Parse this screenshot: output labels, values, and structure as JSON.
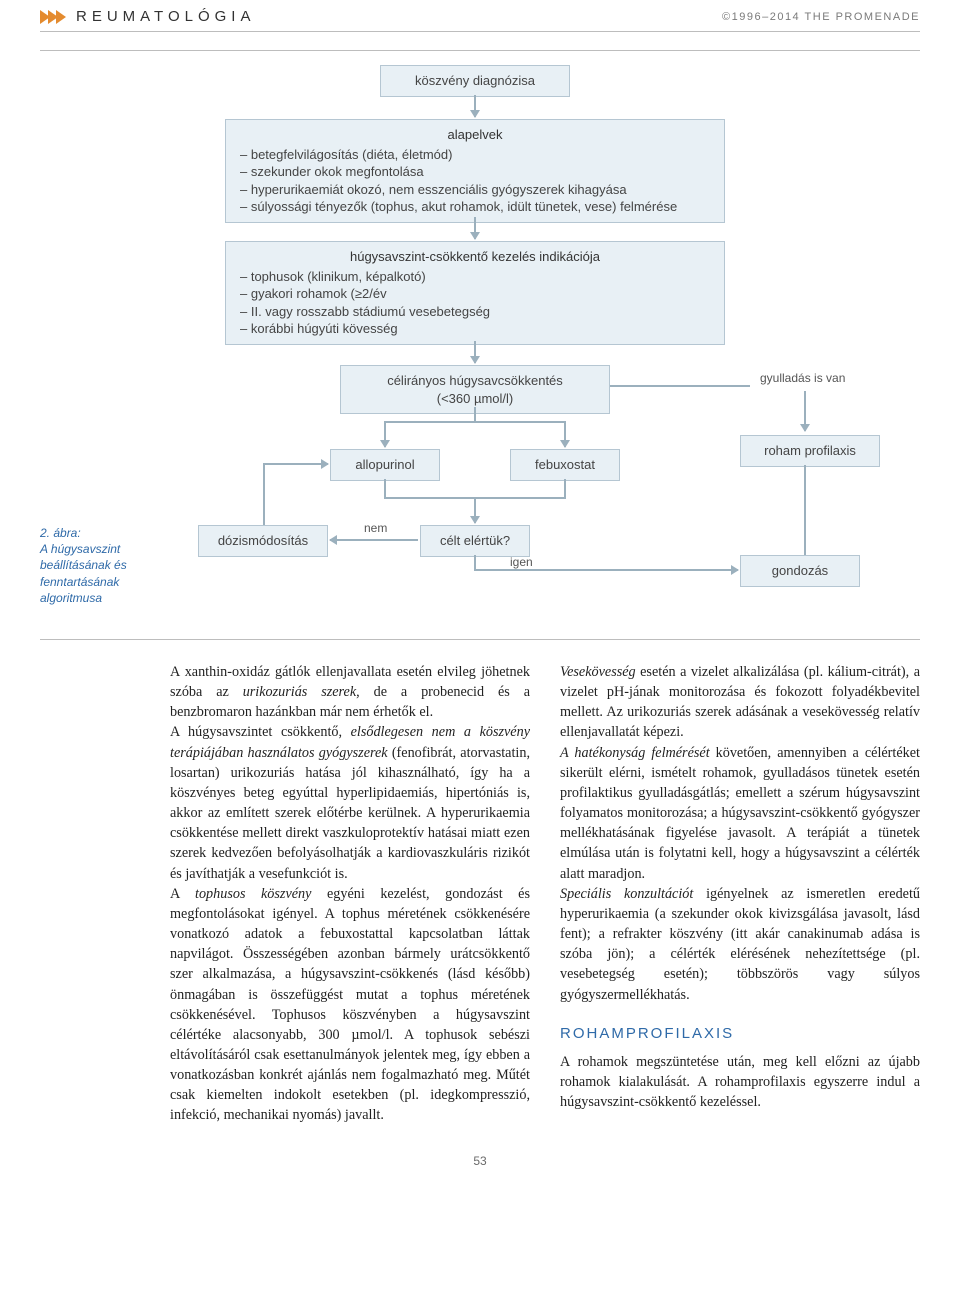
{
  "header": {
    "section": "REUMATOLÓGIA",
    "copyright": "©1996–2014 THE PROMENADE"
  },
  "flowchart": {
    "nodes": {
      "diagnosis": {
        "title": "köszvény diagnózisa"
      },
      "principles": {
        "title": "alapelvek",
        "items": [
          "betegfelvilágosítás (diéta, életmód)",
          "szekunder okok megfontolása",
          "hyperurikaemiát okozó, nem esszenciális gyógyszerek kihagyása",
          "súlyossági tényezők (tophus, akut rohamok, idült tünetek, vese) felmérése"
        ]
      },
      "indication": {
        "title": "húgysavszint-csökkentő kezelés indikációja",
        "items": [
          "tophusok (klinikum, képalkotó)",
          "gyakori rohamok (≥2/év",
          "II. vagy rosszabb stádiumú vesebetegség",
          "korábbi húgyúti kövesség"
        ]
      },
      "target": {
        "line1": "célirányos húgysavcsökkentés",
        "line2": "(<360 µmol/l)"
      },
      "allopurinol": "allopurinol",
      "febuxostat": "febuxostat",
      "dose": "dózismódosítás",
      "reached": "célt elértük?",
      "inflammation": "gyulladás is van",
      "prophylaxis": "roham profilaxis",
      "care": "gondozás"
    },
    "labels": {
      "no": "nem",
      "yes": "igen"
    }
  },
  "figure_caption": {
    "num": "2. ábra:",
    "text": "A húgysavszint beállításának és fenntartásának algoritmusa"
  },
  "body": {
    "left": "A xanthin-oxidáz gátlók ellenjavallata esetén elvileg jöhetnek szóba az <em class=\"ital\">urikozuriás szerek</em>, de a probenecid és a benzbromaron hazánkban már nem érhetők el.<br>A húgysavszintet csökkentő, <em class=\"ital\">elsődlegesen nem a köszvény terápiájában használatos gyógyszerek</em> (fenofibrát, atorvastatin, losartan) urikozuriás hatása jól kihasználható, így ha a köszvényes beteg egyúttal hyperlipidaemiás, hipertóniás is, akkor az említett szerek előtérbe kerülnek. A hyperurikaemia csökkentése mellett direkt vaszkuloprotektív hatásai miatt ezen szerek kedvezően befolyásolhatják a kardiovaszkuláris rizikót és javíthatják a vesefunkciót is.<br>A <em class=\"ital\">tophusos köszvény</em> egyéni kezelést, gondozást és megfontolásokat igényel. A tophus méretének csökkenésére vonatkozó adatok a febuxostattal kapcsolatban láttak napvilágot. Összességében azonban bármely urátcsökkentő szer alkalmazása, a húgysavszint-csökkenés (lásd később) önmagában is összefüggést mutat a tophus méretének csökkenésével. Tophusos köszvényben a húgysavszint célértéke alacsonyabb, 300 µmol/l. A tophusok sebészi eltávolításáról csak esettanulmányok jelentek meg, így ebben a vonatkozásban konkrét ajánlás nem fogalmazható meg. Műtét csak kiemelten indokolt esetekben (pl. idegkompresszió, infekció, mechanikai nyomás) javallt.",
    "right_p1": "<em class=\"ital\">Vesekövesség</em> esetén a vizelet alkalizálása (pl. kálium-citrát), a vizelet pH-jának monitorozása és fokozott folyadékbevitel mellett. Az urikozuriás szerek adásának a vesekövesség relatív ellenjavallatát képezi.<br><em class=\"ital\">A hatékonyság felmérését</em> követően, amennyiben a célértéket sikerült elérni, ismételt rohamok, gyulladásos tünetek esetén profilaktikus gyulladásgátlás; emellett a szérum húgysavszint folyamatos monitorozása; a húgysavszint-csökkentő gyógyszer mellékhatásának figyelése javasolt. A terápiát a tünetek elmúlása után is folytatni kell, hogy a húgysavszint a célérték alatt maradjon.<br><em class=\"ital\">Speciális konzultációt</em> igényelnek az ismeretlen eredetű hyperurikaemia (a szekunder okok kivizsgálása javasolt, lásd fent); a refrakter köszvény (itt akár canakinumab adása is szóba jön); a célérték elérésének nehezítettsége (pl. vesebetegség esetén); többszörös vagy súlyos gyógyszermellékhatás.",
    "right_heading": "ROHAMPROFILAXIS",
    "right_p2": "A rohamok megszüntetése után, meg kell előzni az újabb rohamok kialakulását. A rohamprofilaxis egyszerre indul a húgysavszint-csökkentő kezeléssel."
  },
  "page_number": "53",
  "style": {
    "accent_blue": "#2f6aa8",
    "box_bg": "#e8f0f5",
    "box_border": "#b5c6d2",
    "arrow_color": "#9bb0bd",
    "chevron_color": "#e48b2f"
  }
}
